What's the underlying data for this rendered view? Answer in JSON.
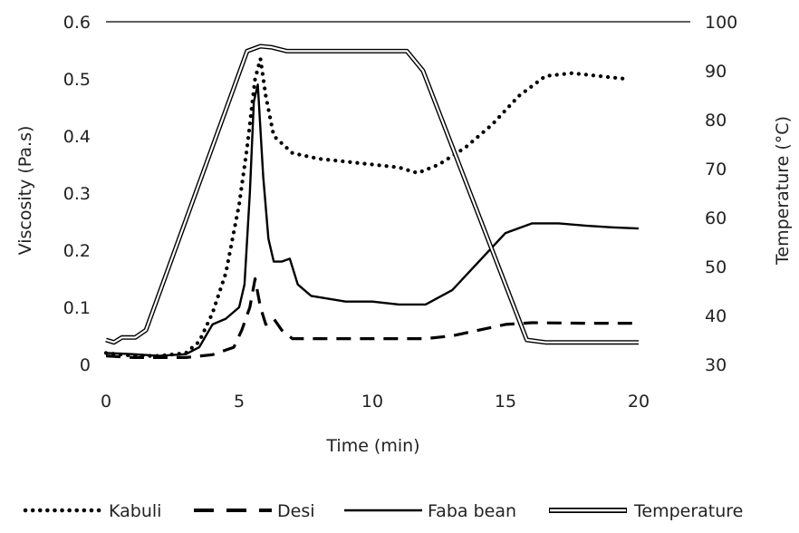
{
  "chart_data": {
    "type": "line",
    "xlabel": "Time (min)",
    "ylabel": "Viscosity (Pa.s)",
    "y2label": "Temperature (°C)",
    "xlim": [
      0,
      20
    ],
    "ylim": [
      0,
      0.6
    ],
    "y2lim": [
      30,
      100
    ],
    "x_ticks": [
      "0",
      "5",
      "10",
      "15",
      "20"
    ],
    "y_ticks": [
      "0",
      "0.1",
      "0.2",
      "0.3",
      "0.4",
      "0.5",
      "0.6"
    ],
    "y2_ticks": [
      "30",
      "40",
      "50",
      "60",
      "70",
      "80",
      "90",
      "100"
    ],
    "grid": "top boundary line only",
    "legend_position": "bottom",
    "series": [
      {
        "name": "Kabuli",
        "axis": "left",
        "style": "dotted",
        "color": "#000000",
        "points": [
          [
            0,
            0.02
          ],
          [
            1,
            0.015
          ],
          [
            2,
            0.015
          ],
          [
            3,
            0.02
          ],
          [
            3.5,
            0.04
          ],
          [
            4,
            0.09
          ],
          [
            4.5,
            0.16
          ],
          [
            5,
            0.28
          ],
          [
            5.3,
            0.38
          ],
          [
            5.6,
            0.5
          ],
          [
            5.8,
            0.535
          ],
          [
            6,
            0.47
          ],
          [
            6.3,
            0.4
          ],
          [
            7,
            0.37
          ],
          [
            8,
            0.36
          ],
          [
            9,
            0.355
          ],
          [
            10,
            0.35
          ],
          [
            11,
            0.345
          ],
          [
            11.7,
            0.335
          ],
          [
            12.5,
            0.35
          ],
          [
            13.5,
            0.38
          ],
          [
            14.5,
            0.42
          ],
          [
            15.5,
            0.47
          ],
          [
            16.5,
            0.505
          ],
          [
            17.5,
            0.51
          ],
          [
            18.5,
            0.505
          ],
          [
            19.5,
            0.5
          ]
        ]
      },
      {
        "name": "Desi",
        "axis": "left",
        "style": "dashed",
        "color": "#000000",
        "points": [
          [
            0,
            0.015
          ],
          [
            1,
            0.012
          ],
          [
            2,
            0.012
          ],
          [
            3,
            0.012
          ],
          [
            4,
            0.017
          ],
          [
            4.8,
            0.03
          ],
          [
            5.1,
            0.06
          ],
          [
            5.4,
            0.1
          ],
          [
            5.6,
            0.15
          ],
          [
            5.8,
            0.1
          ],
          [
            6,
            0.07
          ],
          [
            6.3,
            0.08
          ],
          [
            6.6,
            0.06
          ],
          [
            7,
            0.045
          ],
          [
            8,
            0.045
          ],
          [
            10,
            0.045
          ],
          [
            12,
            0.045
          ],
          [
            13,
            0.05
          ],
          [
            14,
            0.06
          ],
          [
            15,
            0.07
          ],
          [
            16,
            0.073
          ],
          [
            18,
            0.072
          ],
          [
            20,
            0.072
          ]
        ]
      },
      {
        "name": "Faba bean",
        "axis": "left",
        "style": "solid",
        "color": "#000000",
        "points": [
          [
            0,
            0.02
          ],
          [
            1,
            0.018
          ],
          [
            2,
            0.015
          ],
          [
            3,
            0.018
          ],
          [
            3.5,
            0.03
          ],
          [
            4,
            0.07
          ],
          [
            4.5,
            0.08
          ],
          [
            5,
            0.1
          ],
          [
            5.2,
            0.14
          ],
          [
            5.4,
            0.3
          ],
          [
            5.55,
            0.46
          ],
          [
            5.7,
            0.49
          ],
          [
            5.9,
            0.33
          ],
          [
            6.1,
            0.22
          ],
          [
            6.3,
            0.18
          ],
          [
            6.6,
            0.18
          ],
          [
            6.9,
            0.185
          ],
          [
            7.2,
            0.14
          ],
          [
            7.7,
            0.12
          ],
          [
            9,
            0.11
          ],
          [
            10,
            0.11
          ],
          [
            11,
            0.105
          ],
          [
            12,
            0.105
          ],
          [
            13,
            0.13
          ],
          [
            14,
            0.18
          ],
          [
            15,
            0.23
          ],
          [
            16,
            0.247
          ],
          [
            17,
            0.247
          ],
          [
            18,
            0.243
          ],
          [
            19,
            0.24
          ],
          [
            20,
            0.238
          ]
        ]
      },
      {
        "name": "Temperature",
        "axis": "right",
        "style": "double",
        "color": "#000000",
        "points": [
          [
            0,
            35
          ],
          [
            0.3,
            34.5
          ],
          [
            0.6,
            35.5
          ],
          [
            1.1,
            35.5
          ],
          [
            1.5,
            37
          ],
          [
            5.3,
            94
          ],
          [
            5.8,
            95
          ],
          [
            6.2,
            94.8
          ],
          [
            6.8,
            94
          ],
          [
            11.3,
            94
          ],
          [
            11.9,
            90
          ],
          [
            15.8,
            35
          ],
          [
            16.5,
            34.5
          ],
          [
            20,
            34.5
          ]
        ]
      }
    ]
  }
}
